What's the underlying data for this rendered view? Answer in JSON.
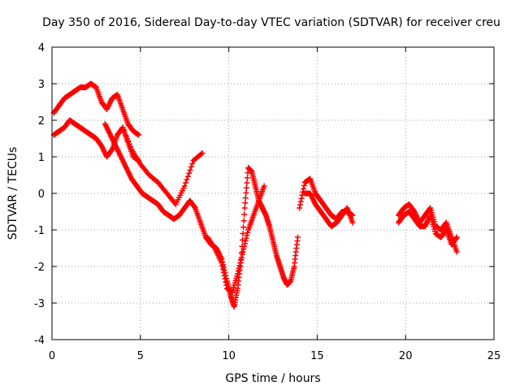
{
  "chart_data": {
    "type": "scatter",
    "title": "Day 350 of 2016, Sidereal Day-to-day VTEC variation (SDTVAR) for receiver creu",
    "xlabel": "GPS time / hours",
    "ylabel": "SDTVAR / TECUs",
    "xlim": [
      0,
      25
    ],
    "ylim": [
      -4,
      4
    ],
    "xticks": [
      "0",
      "5",
      "10",
      "15",
      "20",
      "25"
    ],
    "yticks": [
      "-4",
      "-3",
      "-2",
      "-1",
      "0",
      "1",
      "2",
      "3",
      "4"
    ],
    "grid": true,
    "marker": "plus",
    "color": "#ff0000",
    "series": [
      {
        "name": "band-upper",
        "x": [
          0.1,
          0.4,
          0.7,
          1.0,
          1.3,
          1.6,
          1.9,
          2.2,
          2.5,
          2.8,
          3.1,
          3.4,
          3.7,
          4.0,
          4.3,
          4.6,
          4.9
        ],
        "y": [
          2.2,
          2.4,
          2.6,
          2.7,
          2.8,
          2.9,
          2.9,
          3.0,
          2.9,
          2.5,
          2.3,
          2.6,
          2.7,
          2.3,
          1.9,
          1.7,
          1.6
        ]
      },
      {
        "name": "band-lower",
        "x": [
          0.1,
          0.4,
          0.7,
          1.0,
          1.3,
          1.6,
          1.9,
          2.2,
          2.5,
          2.8,
          3.1,
          3.4,
          3.7,
          4.0,
          4.3,
          4.6,
          4.9
        ],
        "y": [
          1.6,
          1.7,
          1.8,
          2.0,
          1.9,
          1.8,
          1.7,
          1.6,
          1.5,
          1.3,
          1.0,
          1.2,
          1.6,
          1.8,
          1.4,
          1.0,
          0.9
        ]
      },
      {
        "name": "main",
        "x": [
          3.0,
          3.3,
          3.6,
          3.9,
          4.2,
          4.5,
          4.8,
          5.1,
          5.4,
          5.7,
          6.0,
          6.3,
          6.6,
          6.9,
          7.2,
          7.5,
          7.8,
          8.1,
          8.4,
          8.7,
          9.0,
          9.3,
          9.6,
          9.9,
          10.1,
          10.3,
          10.5,
          10.7,
          10.9,
          11.1,
          11.3,
          11.5,
          11.7,
          11.9,
          12.1,
          12.3,
          12.5,
          12.7,
          12.9,
          13.1,
          13.3,
          13.5,
          13.7,
          13.9
        ],
        "y": [
          1.9,
          1.6,
          1.3,
          1.0,
          0.7,
          0.4,
          0.2,
          0.0,
          -0.1,
          -0.2,
          -0.3,
          -0.5,
          -0.6,
          -0.7,
          -0.6,
          -0.4,
          -0.2,
          -0.4,
          -0.8,
          -1.2,
          -1.4,
          -1.5,
          -1.8,
          -2.4,
          -2.8,
          -3.1,
          -2.6,
          -1.8,
          -0.4,
          0.7,
          0.6,
          0.2,
          -0.2,
          -0.4,
          -0.6,
          -0.9,
          -1.3,
          -1.7,
          -2.0,
          -2.3,
          -2.5,
          -2.4,
          -2.0,
          -1.2
        ]
      },
      {
        "name": "mid-branch",
        "x": [
          4.0,
          4.5,
          5.0,
          5.5,
          6.0,
          6.5,
          7.0,
          7.5,
          8.0,
          8.5
        ],
        "y": [
          1.8,
          1.2,
          0.8,
          0.5,
          0.3,
          0.0,
          -0.3,
          0.2,
          0.9,
          1.1
        ]
      },
      {
        "name": "dip-lower",
        "x": [
          8.8,
          9.2,
          9.6,
          9.9,
          10.2,
          10.5,
          10.8,
          11.1,
          11.4,
          11.7,
          12.0
        ],
        "y": [
          -1.2,
          -1.5,
          -1.9,
          -2.6,
          -2.7,
          -2.2,
          -1.6,
          -1.0,
          -0.6,
          -0.2,
          0.2
        ]
      },
      {
        "name": "recovery",
        "x": [
          14.0,
          14.3,
          14.6,
          14.9,
          15.2,
          15.5,
          15.8,
          16.1,
          16.4,
          16.7,
          17.0
        ],
        "y": [
          -0.4,
          0.3,
          0.4,
          0.0,
          -0.2,
          -0.4,
          -0.6,
          -0.7,
          -0.5,
          -0.5,
          -0.6
        ]
      },
      {
        "name": "recovery-lower",
        "x": [
          14.3,
          14.6,
          14.9,
          15.2,
          15.5,
          15.8,
          16.1,
          16.4,
          16.7,
          17.0
        ],
        "y": [
          0.0,
          0.0,
          -0.3,
          -0.5,
          -0.7,
          -0.9,
          -0.8,
          -0.6,
          -0.4,
          -0.8
        ]
      },
      {
        "name": "late",
        "x": [
          19.6,
          19.9,
          20.2,
          20.5,
          20.8,
          21.1,
          21.4,
          21.7,
          22.0,
          22.3,
          22.6,
          22.9
        ],
        "y": [
          -0.6,
          -0.4,
          -0.3,
          -0.5,
          -0.8,
          -0.6,
          -0.4,
          -0.9,
          -1.0,
          -0.8,
          -1.2,
          -1.6
        ]
      },
      {
        "name": "late-lower",
        "x": [
          19.6,
          19.9,
          20.2,
          20.5,
          20.8,
          21.1,
          21.4,
          21.7,
          22.0,
          22.3,
          22.6,
          22.9
        ],
        "y": [
          -0.8,
          -0.6,
          -0.5,
          -0.7,
          -0.9,
          -0.9,
          -0.6,
          -1.1,
          -1.2,
          -1.0,
          -1.4,
          -1.2
        ]
      }
    ]
  }
}
